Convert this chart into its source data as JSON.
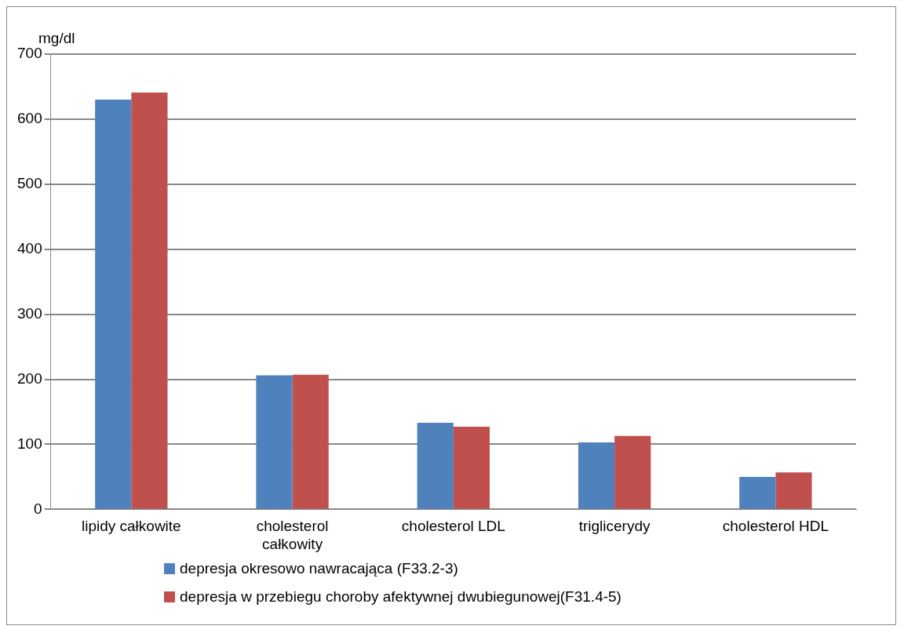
{
  "chart_data": {
    "type": "bar",
    "ylabel": "mg/dl",
    "categories": [
      "lipidy całkowite",
      "cholesterol całkowity",
      "cholesterol LDL",
      "triglicerydy",
      "cholesterol HDL"
    ],
    "series": [
      {
        "name": "depresja okresowo nawracająca (F33.2-3)",
        "color": "#4f81bd",
        "values": [
          630,
          206,
          133,
          103,
          50
        ]
      },
      {
        "name": "depresja w przebiegu choroby afektywnej dwubiegunowej(F31.4-5)",
        "color": "#c0504d",
        "values": [
          641,
          207,
          127,
          113,
          57
        ]
      }
    ],
    "ylim": [
      0,
      700
    ],
    "yticks": [
      0,
      100,
      200,
      300,
      400,
      500,
      600,
      700
    ],
    "grid": "y",
    "legend": "bottom"
  }
}
